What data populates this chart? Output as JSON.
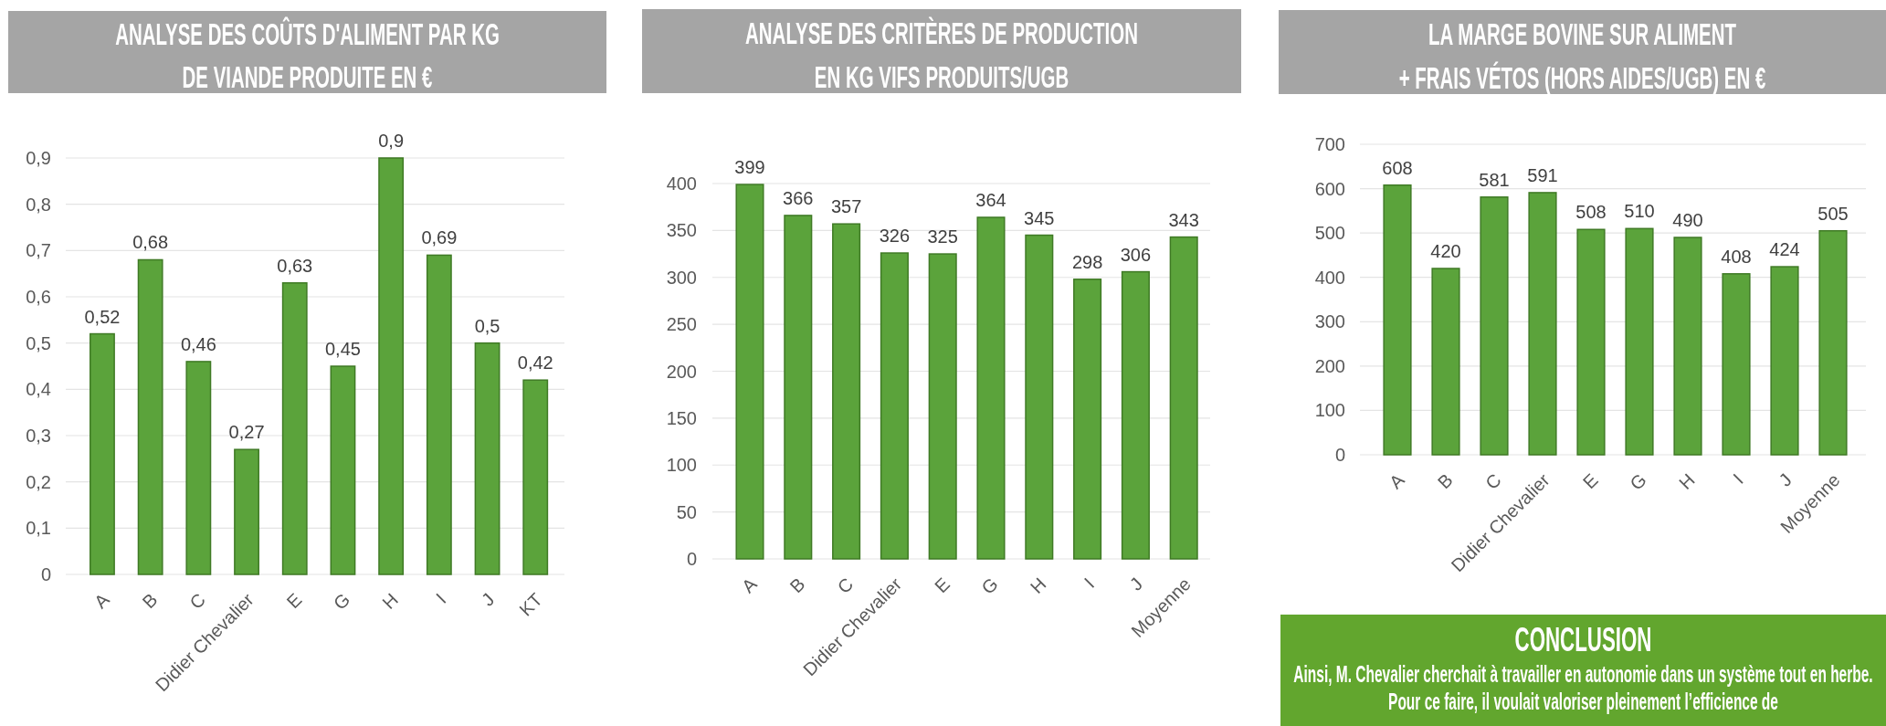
{
  "chart_data": [
    {
      "type": "bar",
      "title": "ANALYSE DES COÛTS D'ALIMENT PAR KG\nDE VIANDE PRODUITE EN €",
      "categories": [
        "A",
        "B",
        "C",
        "Didier Chevalier",
        "E",
        "G",
        "H",
        "I",
        "J",
        "KT"
      ],
      "values": [
        0.52,
        0.68,
        0.46,
        0.27,
        0.63,
        0.45,
        0.9,
        0.69,
        0.5,
        0.42
      ],
      "value_labels": [
        "0,52",
        "0,68",
        "0,46",
        "0,27",
        "0,63",
        "0,45",
        "0,9",
        "0,69",
        "0,5",
        "0,42"
      ],
      "color": "#5ba33b",
      "ylim": [
        0,
        0.9
      ],
      "yticks": [
        0,
        {
          "value": 0.1,
          "label": "0,1"
        },
        {
          "value": 0.2,
          "label": "0,2"
        },
        {
          "value": 0.3,
          "label": "0,3"
        },
        {
          "value": 0.4,
          "label": "0,4"
        },
        {
          "value": 0.5,
          "label": "0,5"
        },
        {
          "value": 0.6,
          "label": "0,6"
        },
        {
          "value": 0.7,
          "label": "0,7"
        },
        {
          "value": 0.8,
          "label": "0,8"
        },
        {
          "value": 0.9,
          "label": "0,9"
        }
      ],
      "grid": "y"
    },
    {
      "type": "bar",
      "title": "ANALYSE DES CRITÈRES DE PRODUCTION\nEN KG VIFS PRODUITS/UGB",
      "categories": [
        "A",
        "B",
        "C",
        "Didier Chevalier",
        "E",
        "G",
        "H",
        "I",
        "J",
        "Moyenne"
      ],
      "values": [
        399,
        366,
        357,
        326,
        325,
        364,
        345,
        298,
        306,
        343
      ],
      "data_labels": true,
      "color": "#5ba33b",
      "ylim": [
        0,
        400
      ],
      "yticks": [
        0,
        50,
        100,
        150,
        200,
        250,
        300,
        350,
        400
      ],
      "grid": "y"
    },
    {
      "type": "bar",
      "title": "LA MARGE BOVINE SUR ALIMENT\n+ FRAIS VÉTOS (HORS AIDES/UGB) EN €",
      "categories": [
        "A",
        "B",
        "C",
        "Didier Chevalier",
        "E",
        "G",
        "H",
        "I",
        "J",
        "Moyenne"
      ],
      "values": [
        608,
        420,
        581,
        591,
        508,
        510,
        490,
        408,
        424,
        505
      ],
      "data_labels": true,
      "color": "#5ba33b",
      "ylim": [
        0,
        700
      ],
      "yticks": [
        0,
        100,
        200,
        300,
        400,
        500,
        600,
        700
      ],
      "grid": "y"
    },
    {
      "type": "other",
      "title": "CONCLUSION",
      "annotations": [
        "Ainsi, M. Chevalier cherchait à travailler en autonomie dans un système tout en herbe. Pour ce faire, il voulait valoriser pleinement l’efficience de"
      ]
    }
  ]
}
